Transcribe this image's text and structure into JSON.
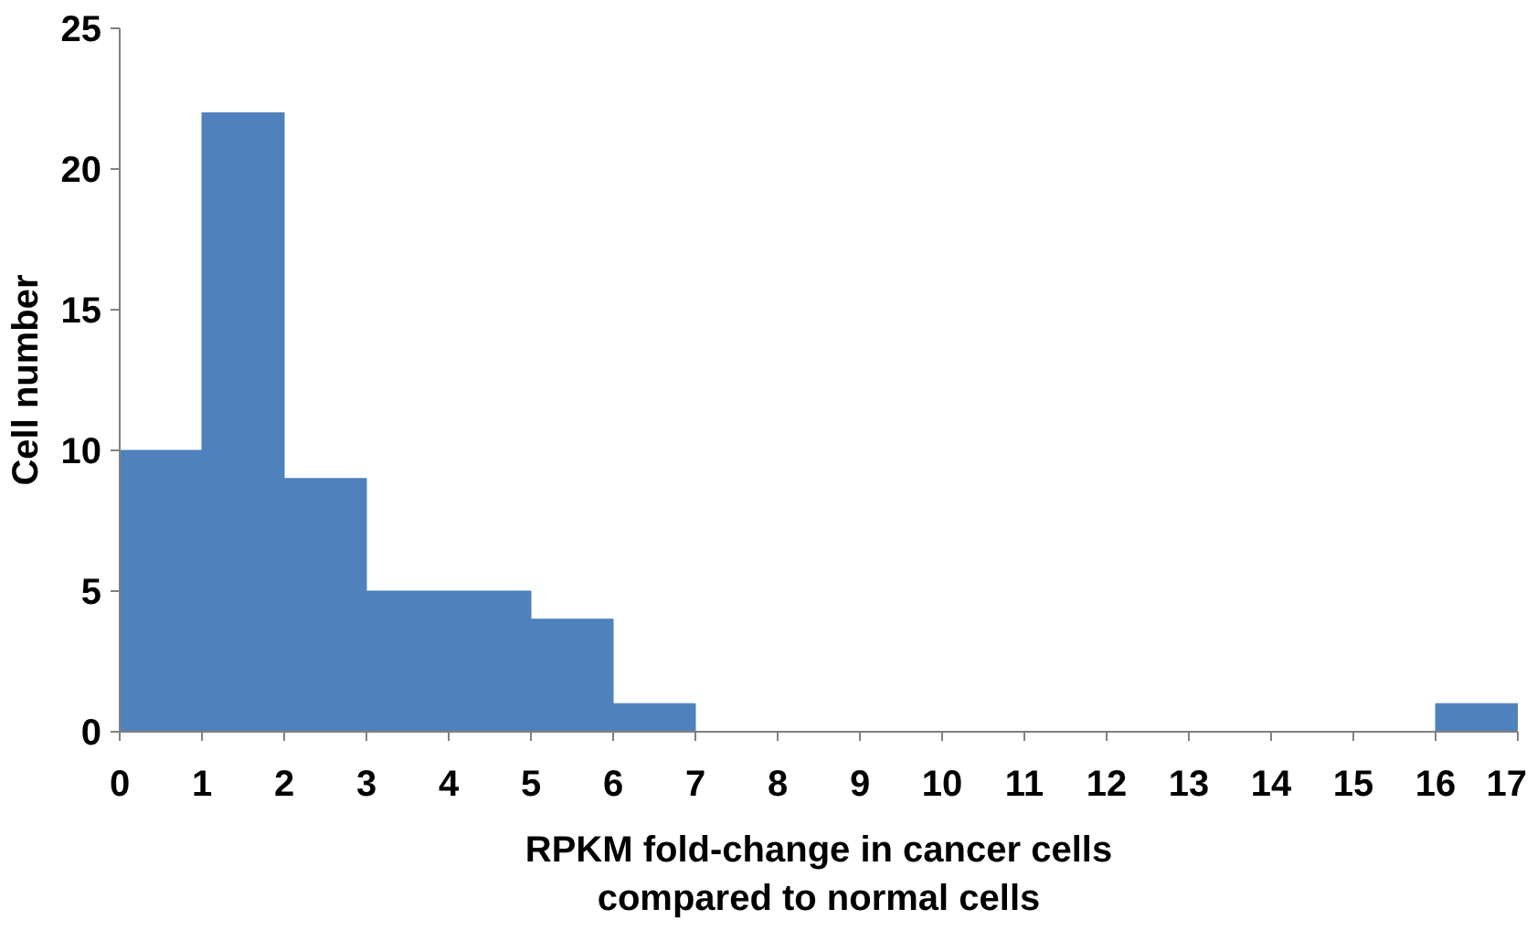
{
  "chart_data": {
    "type": "histogram",
    "xlabel": "RPKM fold-change in cancer cells compared to normal cells",
    "ylabel": "Cell number",
    "bins": [
      0,
      1,
      2,
      3,
      4,
      5,
      6,
      7,
      8,
      9,
      10,
      11,
      12,
      13,
      14,
      15,
      16,
      17
    ],
    "values": [
      10,
      22,
      9,
      5,
      5,
      4,
      1,
      0,
      0,
      0,
      0,
      0,
      0,
      0,
      0,
      0,
      1
    ],
    "color": "#4f81bd",
    "xlim": [
      0,
      17
    ],
    "xticks": [
      0,
      1,
      2,
      3,
      4,
      5,
      6,
      7,
      8,
      9,
      10,
      11,
      12,
      13,
      14,
      15,
      16,
      17
    ],
    "ylim": [
      0,
      25
    ],
    "yticks": [
      0,
      5,
      10,
      15,
      20,
      25
    ]
  }
}
